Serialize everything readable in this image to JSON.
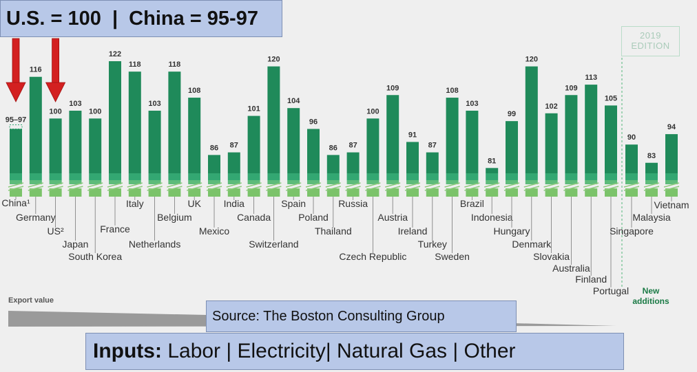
{
  "chart_data": {
    "type": "bar",
    "title": "",
    "xlabel": "",
    "ylabel": "",
    "stack_colors": [
      "#7bc36a",
      "#5dbb7a",
      "#33a772",
      "#1f8a5a"
    ],
    "stack_labels": [
      "Labor",
      "Electricity",
      "Natural Gas",
      "Other"
    ],
    "categories": [
      "China¹",
      "Germany",
      "US²",
      "Japan",
      "South Korea",
      "France",
      "Italy",
      "Netherlands",
      "Belgium",
      "UK",
      "Mexico",
      "India",
      "Canada",
      "Switzerland",
      "Spain",
      "Poland",
      "Thailand",
      "Russia",
      "Czech Republic",
      "Austria",
      "Ireland",
      "Turkey",
      "Sweden",
      "Brazil",
      "Indonesia",
      "Hungary",
      "Denmark",
      "Slovakia",
      "Australia",
      "Finland",
      "Portugal",
      "Singapore",
      "Malaysia",
      "Vietnam"
    ],
    "value_labels": [
      "95–97",
      "116",
      "100",
      "103",
      "100",
      "122",
      "118",
      "103",
      "118",
      "108",
      "86",
      "87",
      "101",
      "120",
      "104",
      "96",
      "86",
      "87",
      "100",
      "109",
      "91",
      "87",
      "108",
      "103",
      "81",
      "99",
      "120",
      "102",
      "109",
      "113",
      "105",
      "90",
      "83",
      "94"
    ],
    "values": [
      96,
      116,
      100,
      103,
      100,
      122,
      118,
      103,
      118,
      108,
      86,
      87,
      101,
      120,
      104,
      96,
      86,
      87,
      100,
      109,
      91,
      87,
      108,
      103,
      81,
      99,
      120,
      102,
      109,
      113,
      105,
      90,
      83,
      94
    ],
    "new_additions": [
      "Singapore",
      "Malaysia",
      "Vietnam"
    ],
    "edition_label": "2019\nEDITION",
    "new_additions_label": "New\nadditions",
    "export_value_label": "Export value"
  },
  "banner": {
    "text": "U.S. = 100  |  China = 95-97"
  },
  "source": {
    "text": "Source: The Boston Consulting Group"
  },
  "inputs": {
    "bold": "Inputs:",
    "text": " Labor | Electricity| Natural Gas | Other"
  }
}
